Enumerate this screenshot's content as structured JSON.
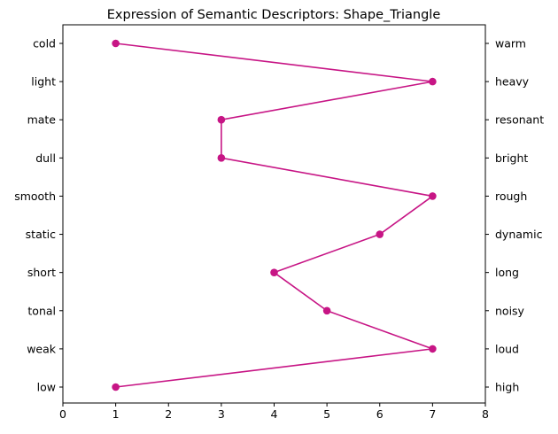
{
  "chart_data": {
    "type": "line",
    "title": "Expression of Semantic Descriptors: Shape_Triangle",
    "xlim": [
      0,
      8
    ],
    "x_ticks": [
      "0",
      "1",
      "2",
      "3",
      "4",
      "5",
      "6",
      "7",
      "8"
    ],
    "left_labels": [
      "cold",
      "light",
      "mate",
      "dull",
      "smooth",
      "static",
      "short",
      "tonal",
      "weak",
      "low"
    ],
    "right_labels": [
      "warm",
      "heavy",
      "resonant",
      "bright",
      "rough",
      "dynamic",
      "long",
      "noisy",
      "loud",
      "high"
    ],
    "values": [
      1,
      7,
      3,
      3,
      7,
      6,
      4,
      5,
      7,
      1
    ],
    "color": "#c71585",
    "grid": false,
    "legend": "none"
  }
}
